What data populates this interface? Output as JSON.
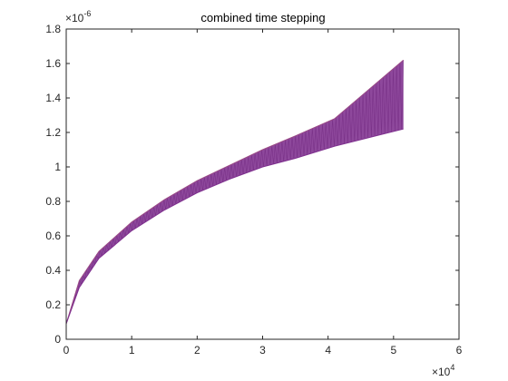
{
  "chart_data": {
    "type": "line",
    "title": "combined time stepping",
    "xlabel": "",
    "ylabel": "",
    "xlim": [
      0,
      60000
    ],
    "ylim": [
      0,
      1.8e-06
    ],
    "x_ticks": [
      0,
      10000,
      20000,
      30000,
      40000,
      50000,
      60000
    ],
    "x_tick_labels": [
      "0",
      "1",
      "2",
      "3",
      "4",
      "5",
      "6"
    ],
    "y_ticks": [
      0,
      2e-07,
      4e-07,
      6e-07,
      8e-07,
      1e-06,
      1.2e-06,
      1.4e-06,
      1.6e-06,
      1.8e-06
    ],
    "y_tick_labels": [
      "0",
      "0.2",
      "0.4",
      "0.6",
      "0.8",
      "1",
      "1.2",
      "1.4",
      "1.6",
      "1.8"
    ],
    "x_exponent": {
      "base": "×10",
      "power": "4"
    },
    "y_exponent": {
      "base": "×10",
      "power": "-6"
    },
    "grid": false,
    "legend": "none",
    "series_color": "#7e2f8e",
    "series": [
      {
        "role": "upper-envelope",
        "x": [
          0,
          2000,
          5000,
          10000,
          15000,
          20000,
          25000,
          30000,
          35000,
          41000,
          51500
        ],
        "y": [
          9e-08,
          3.4e-07,
          5.1e-07,
          6.8e-07,
          8.1e-07,
          9.2e-07,
          1.01e-06,
          1.1e-06,
          1.18e-06,
          1.28e-06,
          1.62e-06
        ]
      },
      {
        "role": "lower-envelope",
        "x": [
          0,
          2000,
          5000,
          10000,
          15000,
          20000,
          25000,
          30000,
          35000,
          41000,
          51500
        ],
        "y": [
          9e-08,
          3e-07,
          4.7e-07,
          6.3e-07,
          7.5e-07,
          8.5e-07,
          9.3e-07,
          1e-06,
          1.05e-06,
          1.12e-06,
          1.22e-06
        ]
      }
    ]
  }
}
